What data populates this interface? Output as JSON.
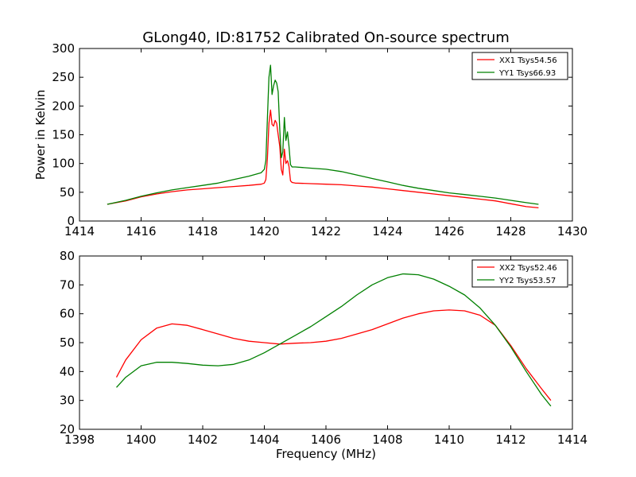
{
  "title": "GLong40, ID:81752 Calibrated On-source spectrum",
  "colors": {
    "xx": "#ff0000",
    "yy": "#008000"
  },
  "chart_data": [
    {
      "type": "line",
      "title": "GLong40, ID:81752 Calibrated On-source spectrum",
      "xlabel": "",
      "ylabel": "Power in Kelvin",
      "xlim": [
        1414,
        1430
      ],
      "ylim": [
        0,
        300
      ],
      "xticks": [
        1414,
        1416,
        1418,
        1420,
        1422,
        1424,
        1426,
        1428,
        1430
      ],
      "yticks": [
        0,
        50,
        100,
        150,
        200,
        250,
        300
      ],
      "grid": false,
      "legend": "top-right",
      "series": [
        {
          "name": "XX1 Tsys54.56",
          "color": "#ff0000",
          "x": [
            1414.9,
            1415.5,
            1416,
            1416.5,
            1417,
            1417.5,
            1418,
            1418.5,
            1419,
            1419.5,
            1419.9,
            1420.0,
            1420.05,
            1420.1,
            1420.15,
            1420.2,
            1420.25,
            1420.3,
            1420.35,
            1420.4,
            1420.45,
            1420.5,
            1420.55,
            1420.6,
            1420.65,
            1420.7,
            1420.75,
            1420.8,
            1420.85,
            1420.9,
            1421,
            1421.5,
            1422,
            1422.5,
            1423,
            1423.5,
            1424,
            1424.5,
            1425,
            1425.5,
            1426,
            1426.5,
            1427,
            1427.5,
            1428,
            1428.5,
            1428.9
          ],
          "y": [
            29,
            35,
            42,
            47,
            51,
            54,
            56,
            58,
            60,
            62,
            64,
            66,
            72,
            110,
            170,
            193,
            168,
            165,
            175,
            170,
            150,
            130,
            90,
            80,
            125,
            100,
            105,
            95,
            70,
            67,
            66,
            65,
            64,
            63,
            61,
            59,
            56,
            53,
            50,
            47,
            44,
            41,
            38,
            35,
            30,
            25,
            23
          ]
        },
        {
          "name": "YY1 Tsys66.93",
          "color": "#008000",
          "x": [
            1414.9,
            1415.5,
            1416,
            1416.5,
            1417,
            1417.5,
            1418,
            1418.5,
            1419,
            1419.5,
            1419.9,
            1420.0,
            1420.05,
            1420.1,
            1420.15,
            1420.2,
            1420.25,
            1420.3,
            1420.35,
            1420.4,
            1420.45,
            1420.5,
            1420.55,
            1420.6,
            1420.65,
            1420.7,
            1420.75,
            1420.8,
            1420.85,
            1420.9,
            1421,
            1421.5,
            1422,
            1422.5,
            1423,
            1423.5,
            1424,
            1424.5,
            1425,
            1425.5,
            1426,
            1426.5,
            1427,
            1427.5,
            1428,
            1428.5,
            1428.9
          ],
          "y": [
            29,
            36,
            43,
            49,
            54,
            58,
            62,
            66,
            72,
            78,
            84,
            90,
            105,
            180,
            250,
            271,
            220,
            235,
            245,
            240,
            225,
            160,
            110,
            120,
            180,
            140,
            155,
            130,
            98,
            94,
            94,
            92,
            90,
            86,
            80,
            74,
            68,
            62,
            57,
            53,
            49,
            46,
            43,
            40,
            36,
            32,
            29
          ]
        }
      ]
    },
    {
      "type": "line",
      "title": "",
      "xlabel": "Frequency (MHz)",
      "ylabel": "",
      "xlim": [
        1398,
        1414
      ],
      "ylim": [
        20,
        80
      ],
      "xticks": [
        1398,
        1400,
        1402,
        1404,
        1406,
        1408,
        1410,
        1412,
        1414
      ],
      "yticks": [
        20,
        30,
        40,
        50,
        60,
        70,
        80
      ],
      "grid": false,
      "legend": "top-right",
      "series": [
        {
          "name": "XX2 Tsys52.46",
          "color": "#ff0000",
          "x": [
            1399.2,
            1399.5,
            1400,
            1400.5,
            1401,
            1401.5,
            1402,
            1402.5,
            1403,
            1403.5,
            1404,
            1404.5,
            1405,
            1405.5,
            1406,
            1406.5,
            1407,
            1407.5,
            1408,
            1408.5,
            1409,
            1409.5,
            1410,
            1410.5,
            1411,
            1411.5,
            1412,
            1412.5,
            1413,
            1413.3
          ],
          "y": [
            38,
            44,
            51,
            55,
            56.5,
            56,
            54.5,
            53,
            51.5,
            50.5,
            50,
            49.5,
            49.8,
            50,
            50.5,
            51.5,
            53,
            54.5,
            56.5,
            58.5,
            60,
            61,
            61.3,
            61,
            59.5,
            56,
            49,
            41,
            34,
            30
          ]
        },
        {
          "name": "YY2 Tsys53.57",
          "color": "#008000",
          "x": [
            1399.2,
            1399.5,
            1400,
            1400.5,
            1401,
            1401.5,
            1402,
            1402.5,
            1403,
            1403.5,
            1404,
            1404.5,
            1405,
            1405.5,
            1406,
            1406.5,
            1407,
            1407.5,
            1408,
            1408.5,
            1409,
            1409.5,
            1410,
            1410.5,
            1411,
            1411.5,
            1412,
            1412.5,
            1413,
            1413.3
          ],
          "y": [
            34.5,
            38,
            42,
            43.2,
            43.2,
            42.8,
            42.2,
            42,
            42.5,
            44,
            46.5,
            49.5,
            52.5,
            55.5,
            59,
            62.5,
            66.5,
            70,
            72.5,
            73.8,
            73.5,
            72,
            69.5,
            66.5,
            62,
            56,
            48.5,
            40,
            32,
            28
          ]
        }
      ]
    }
  ]
}
